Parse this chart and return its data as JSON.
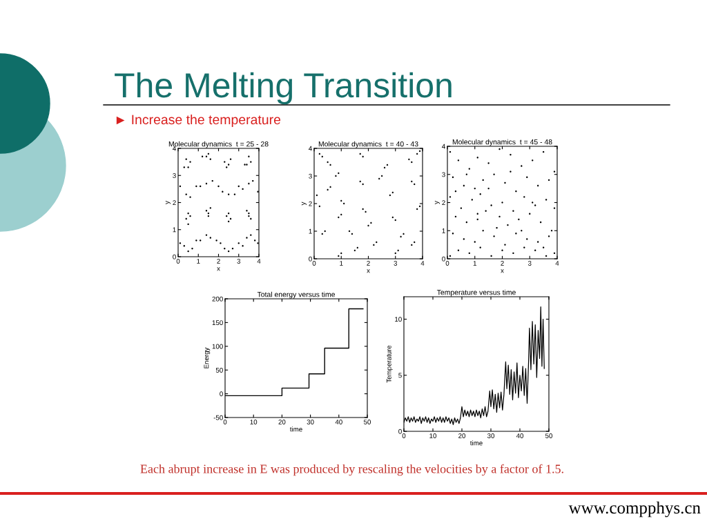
{
  "chart_data": [
    {
      "type": "other",
      "title": "The Melting Transition",
      "subtitle": "► Increase the temperature",
      "annotations": [
        "Each abrupt increase in E was produced by rescaling the velocities by a factor of 1.5.",
        "www.compphys.cn"
      ]
    },
    {
      "type": "scatter",
      "title": "Molecular dynamics  t = 25 - 28",
      "xlabel": "x",
      "ylabel": "y",
      "xlim": [
        0,
        4
      ],
      "ylim": [
        0,
        4
      ],
      "xticks": [
        0,
        1,
        2,
        3,
        4
      ],
      "yticks": [
        0,
        1,
        2,
        3,
        4
      ],
      "grid": false,
      "marker": "circle",
      "series": [
        {
          "color": "#000000",
          "x": [
            0.4,
            0.5,
            0.6,
            0.3,
            1.4,
            1.5,
            1.6,
            1.2,
            2.4,
            2.5,
            2.6,
            2.3,
            3.4,
            3.5,
            3.6,
            3.3,
            0.1,
            0.4,
            0.6,
            0.9,
            1.1,
            1.4,
            1.7,
            2.0,
            2.2,
            2.5,
            2.8,
            3.0,
            3.2,
            3.5,
            3.7,
            3.95,
            0.5,
            0.4,
            0.5,
            0.6,
            1.4,
            1.5,
            1.6,
            1.5,
            2.4,
            2.5,
            2.6,
            2.5,
            3.4,
            3.5,
            3.6,
            3.5,
            0.1,
            0.3,
            0.5,
            0.7,
            0.9,
            1.1,
            1.4,
            1.6,
            1.9,
            2.1,
            2.3,
            2.5,
            2.7,
            3.0,
            3.2,
            3.4,
            3.6,
            3.8,
            3.95
          ],
          "values": [
            3.6,
            3.3,
            3.5,
            3.3,
            3.7,
            3.8,
            3.6,
            3.7,
            3.3,
            3.4,
            3.6,
            3.5,
            3.4,
            3.7,
            3.5,
            3.4,
            2.6,
            2.3,
            2.2,
            2.6,
            2.6,
            2.7,
            2.8,
            2.6,
            2.4,
            2.3,
            2.3,
            2.6,
            2.5,
            2.7,
            2.8,
            2.4,
            1.6,
            1.4,
            1.2,
            1.5,
            1.7,
            1.6,
            1.8,
            1.5,
            1.5,
            1.3,
            1.4,
            1.6,
            1.7,
            1.5,
            1.4,
            1.6,
            0.5,
            0.4,
            0.2,
            0.3,
            0.6,
            0.6,
            0.8,
            0.7,
            0.6,
            0.5,
            0.3,
            0.2,
            0.3,
            0.5,
            0.4,
            0.7,
            0.8,
            0.6,
            0.5
          ]
        }
      ]
    },
    {
      "type": "scatter",
      "title": "Molecular dynamics  t = 40 - 43",
      "xlabel": "x",
      "ylabel": "y",
      "xlim": [
        0,
        4
      ],
      "ylim": [
        0,
        4
      ],
      "xticks": [
        0,
        1,
        2,
        3,
        4
      ],
      "yticks": [
        0,
        1,
        2,
        3,
        4
      ],
      "grid": false,
      "marker": "circle",
      "series": [
        {
          "color": "#000000",
          "x": [
            0.2,
            0.3,
            0.5,
            0.6,
            0.5,
            0.6,
            0.8,
            0.9,
            1.1,
            1.0,
            0.9,
            1.0,
            0.3,
            0.4,
            1.3,
            1.4,
            0.9,
            1.0,
            1.7,
            1.8,
            1.7,
            1.8,
            1.8,
            1.9,
            2.2,
            2.3,
            2.4,
            2.5,
            2.7,
            2.6,
            2.8,
            2.9,
            2.9,
            3.0,
            3.2,
            3.3,
            3.0,
            3.1,
            3.6,
            3.7,
            3.5,
            3.6,
            3.8,
            3.9,
            3.9,
            3.8,
            3.7,
            3.6,
            2.1,
            2.0,
            1.5,
            1.6,
            0.2,
            0.1
          ],
          "values": [
            3.8,
            3.7,
            3.5,
            3.4,
            2.5,
            2.6,
            3.0,
            3.1,
            2.0,
            2.1,
            1.5,
            1.6,
            0.9,
            1.0,
            1.0,
            0.9,
            0.1,
            0.2,
            3.8,
            3.7,
            2.8,
            2.7,
            1.8,
            1.7,
            0.5,
            0.6,
            2.9,
            3.0,
            3.4,
            3.3,
            2.3,
            2.4,
            1.5,
            1.4,
            0.8,
            0.9,
            0.2,
            0.3,
            2.8,
            2.7,
            3.6,
            3.5,
            1.8,
            1.9,
            3.9,
            3.8,
            0.6,
            0.5,
            1.3,
            1.2,
            0.3,
            0.4,
            1.9,
            2.3
          ]
        }
      ]
    },
    {
      "type": "scatter",
      "title": "Molecular dynamics  t = 45 - 48",
      "xlabel": "x",
      "ylabel": "y",
      "xlim": [
        0,
        4
      ],
      "ylim": [
        0,
        4
      ],
      "xticks": [
        0,
        1,
        2,
        3,
        4
      ],
      "yticks": [
        0,
        1,
        2,
        3,
        4
      ],
      "grid": false,
      "marker": "circle",
      "series": [
        {
          "color": "#000000",
          "x": [
            0.1,
            0.4,
            0.8,
            1.1,
            1.5,
            1.9,
            2.3,
            2.7,
            3.1,
            3.5,
            3.9,
            0.2,
            0.6,
            1.0,
            1.3,
            1.7,
            2.1,
            2.5,
            2.9,
            3.3,
            3.7,
            0.1,
            0.5,
            0.9,
            1.2,
            1.6,
            2.0,
            2.4,
            2.8,
            3.2,
            3.6,
            3.9,
            0.3,
            0.7,
            1.1,
            1.4,
            1.8,
            2.2,
            2.6,
            3.0,
            3.4,
            3.8,
            0.2,
            0.6,
            1.0,
            1.3,
            1.7,
            2.1,
            2.5,
            2.9,
            3.3,
            3.7,
            0.1,
            0.4,
            0.8,
            1.2,
            1.6,
            2.0,
            2.4,
            2.8,
            3.2,
            3.6,
            3.9,
            0.3,
            0.7,
            1.1,
            1.5,
            1.9,
            2.3,
            2.7,
            3.1,
            3.5
          ],
          "values": [
            3.8,
            3.5,
            3.2,
            3.6,
            3.4,
            3.9,
            3.7,
            3.3,
            3.5,
            3.8,
            3.1,
            2.9,
            2.6,
            2.5,
            2.8,
            3.0,
            2.7,
            2.4,
            2.9,
            2.6,
            2.8,
            2.2,
            1.8,
            2.1,
            2.3,
            1.9,
            2.0,
            1.7,
            2.2,
            1.9,
            2.1,
            1.8,
            1.5,
            1.3,
            1.6,
            1.7,
            1.1,
            1.2,
            1.4,
            1.6,
            1.3,
            1.0,
            0.9,
            0.7,
            0.6,
            1.0,
            0.8,
            0.5,
            0.9,
            0.7,
            0.6,
            0.8,
            0.1,
            0.3,
            0.2,
            0.4,
            0.1,
            0.3,
            0.2,
            0.4,
            0.3,
            0.1,
            0.2,
            2.4,
            3.0,
            1.4,
            2.5,
            1.5,
            3.1,
            1.0,
            2.0,
            0.4
          ]
        }
      ]
    },
    {
      "type": "step",
      "title": "Total energy versus time",
      "xlabel": "time",
      "ylabel": "Energy",
      "xlim": [
        0,
        50
      ],
      "ylim": [
        -50,
        200
      ],
      "xticks": [
        0,
        10,
        20,
        30,
        40,
        50
      ],
      "yticks": [
        -50,
        0,
        50,
        100,
        150,
        200
      ],
      "grid": false,
      "marker": "none",
      "line_style": "solid",
      "series": [
        {
          "color": "#000000",
          "x": [
            0,
            20,
            29.5,
            35,
            43.5,
            48.5
          ],
          "values": [
            -4,
            12,
            42,
            96,
            179,
            179
          ]
        }
      ]
    },
    {
      "type": "line",
      "title": "Temperature versus time",
      "xlabel": "time",
      "ylabel": "Temperature",
      "xlim": [
        0,
        50
      ],
      "ylim": [
        0,
        12
      ],
      "xticks": [
        0,
        10,
        20,
        30,
        40,
        50
      ],
      "yticks": [
        0,
        5,
        10
      ],
      "grid": false,
      "marker": "none",
      "line_style": "solid",
      "series": [
        {
          "color": "#000000",
          "x": [
            0,
            0.5,
            1,
            1.5,
            2,
            2.5,
            3,
            3.5,
            4,
            4.5,
            5,
            5.5,
            6,
            6.5,
            7,
            7.5,
            8,
            8.5,
            9,
            9.5,
            10,
            10.5,
            11,
            11.5,
            12,
            12.5,
            13,
            13.5,
            14,
            14.5,
            15,
            15.5,
            16,
            16.5,
            17,
            17.5,
            18,
            18.5,
            19,
            19.5,
            20,
            20.5,
            21,
            21.5,
            22,
            22.5,
            23,
            23.5,
            24,
            24.5,
            25,
            25.5,
            26,
            26.5,
            27,
            27.5,
            28,
            28.5,
            29,
            29.6,
            30,
            30.5,
            31,
            31.5,
            32,
            32.5,
            33,
            33.5,
            34,
            34.5,
            35.1,
            35.5,
            36,
            36.5,
            37,
            37.5,
            38,
            38.5,
            39,
            39.5,
            40,
            40.5,
            41,
            41.5,
            42,
            42.5,
            43,
            43.3,
            43.8,
            44.3,
            44.8,
            45.3,
            45.8,
            46.3,
            46.8,
            47.2,
            47.6,
            48,
            48.4
          ],
          "values": [
            0.8,
            1.2,
            0.9,
            1.3,
            0.8,
            1.2,
            0.9,
            1.3,
            0.8,
            1.1,
            0.9,
            1.3,
            0.7,
            1.2,
            0.9,
            1.3,
            0.8,
            1.2,
            0.7,
            1.1,
            0.9,
            1.3,
            0.8,
            1.2,
            0.9,
            1.3,
            0.8,
            1.2,
            0.8,
            1.3,
            0.9,
            1.2,
            0.7,
            1.1,
            0.6,
            1.2,
            0.8,
            1.1,
            0.7,
            1.2,
            2.2,
            1.3,
            1.9,
            1.4,
            1.8,
            1.3,
            1.9,
            1.4,
            1.8,
            1.3,
            1.9,
            1.4,
            1.8,
            1.2,
            2.0,
            1.4,
            2.2,
            1.3,
            1.8,
            3.6,
            2.2,
            3.7,
            2.0,
            3.3,
            1.7,
            3.4,
            2.1,
            3.5,
            1.9,
            3.3,
            6.2,
            3.8,
            5.9,
            3.3,
            5.5,
            2.8,
            5.3,
            3.4,
            6.1,
            3.0,
            5.0,
            3.6,
            5.8,
            3.2,
            5.6,
            2.5,
            6.2,
            9.2,
            5.5,
            9.8,
            6.0,
            9.5,
            4.8,
            9.0,
            6.5,
            11.1,
            5.8,
            10.0,
            5.6
          ]
        }
      ]
    }
  ]
}
